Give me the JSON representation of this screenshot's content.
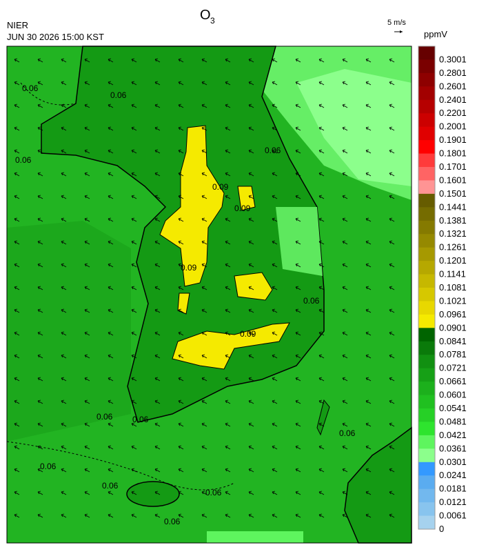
{
  "header": {
    "agency": "NIER",
    "datetime": "JUN 30 2026 15:00 KST",
    "title": {
      "text": "O",
      "subscript": "3"
    },
    "wind_reference": "5 m/s"
  },
  "colorbar": {
    "unit": "ppmV",
    "labels": [
      "0.3001",
      "0.2801",
      "0.2601",
      "0.2401",
      "0.2201",
      "0.2001",
      "0.1901",
      "0.1801",
      "0.1701",
      "0.1601",
      "0.1501",
      "0.1441",
      "0.1381",
      "0.1321",
      "0.1261",
      "0.1201",
      "0.1141",
      "0.1081",
      "0.1021",
      "0.0961",
      "0.0901",
      "0.0841",
      "0.0781",
      "0.0721",
      "0.0661",
      "0.0601",
      "0.0541",
      "0.0481",
      "0.0421",
      "0.0361",
      "0.0301",
      "0.0241",
      "0.0181",
      "0.0121",
      "0.0061",
      "0"
    ],
    "colors": [
      "#660000",
      "#7a0000",
      "#8e0000",
      "#a20000",
      "#b60000",
      "#cc0000",
      "#e00000",
      "#ff0000",
      "#ff3b3b",
      "#ff6464",
      "#ff9494",
      "#665c00",
      "#756c00",
      "#857a00",
      "#958900",
      "#a69900",
      "#b6a800",
      "#c6b800",
      "#d6c800",
      "#e8d800",
      "#f5ea00",
      "#006400",
      "#0a7a0a",
      "#119011",
      "#16a016",
      "#1cb01c",
      "#20c020",
      "#26d026",
      "#2ee42e",
      "#5ef55e",
      "#8cff8c",
      "#3399ff",
      "#5aacf0",
      "#72b8ee",
      "#88c4ee",
      "#a6d2ee"
    ]
  },
  "map": {
    "contour_labels": [
      "0.06",
      "0.06",
      "0.06",
      "0.06",
      "0.06",
      "0.06",
      "0.06",
      "0.06",
      "0.06",
      "0.06",
      "0.06",
      "0.06",
      "0.09",
      "0.09",
      "0.09",
      "0.09"
    ]
  }
}
